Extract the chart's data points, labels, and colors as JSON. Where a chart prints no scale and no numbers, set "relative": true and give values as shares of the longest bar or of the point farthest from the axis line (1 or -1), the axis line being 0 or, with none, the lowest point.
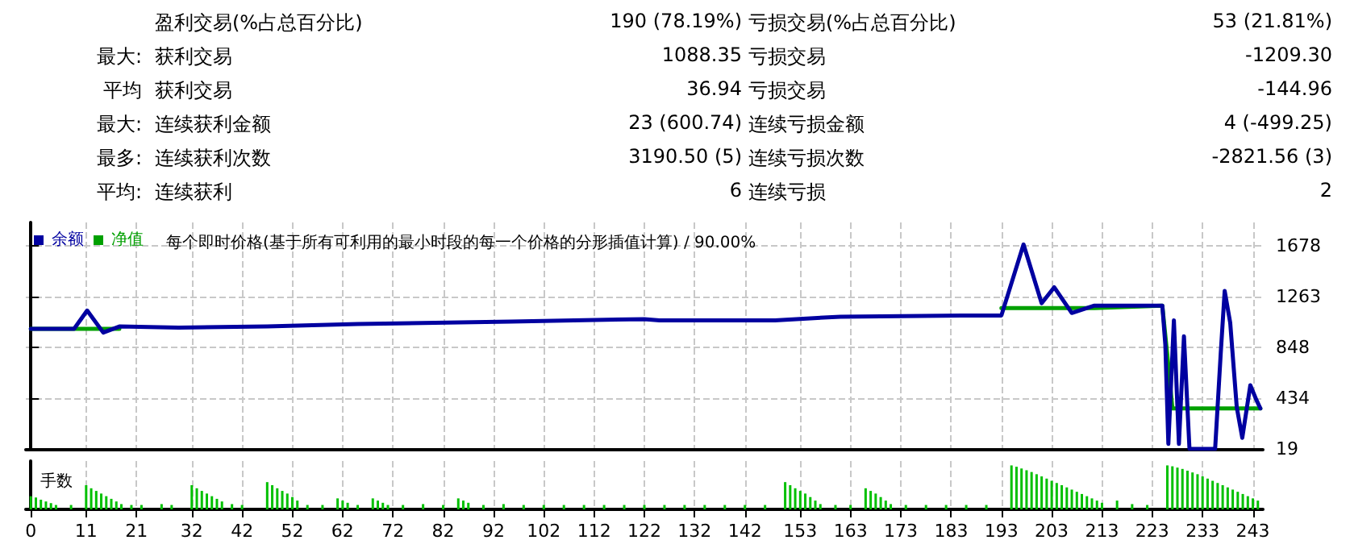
{
  "chart_data": [
    {
      "type": "other",
      "annotations": [
        "盈利交易(%占总百分比)",
        "190 (78.19%)",
        "亏损交易(%占总百分比)",
        "53 (21.81%)",
        "最大:",
        "获利交易",
        "1088.35",
        "亏损交易",
        "-1209.30",
        "平均",
        "获利交易",
        "36.94",
        "亏损交易",
        "-144.96",
        "最大:",
        "连续获利金额",
        "23 (600.74)",
        "连续亏损金额",
        "4 (-499.25)",
        "最多:",
        "连续获利次数",
        "3190.50 (5)",
        "连续亏损次数",
        "-2821.56 (3)",
        "平均:",
        "连续获利",
        "6",
        "连续亏损",
        "2"
      ]
    },
    {
      "type": "line",
      "title": "每个即时价格(基于所有可利用的最小时段的每一个价格的分形插值计算) / 90.00%",
      "xlim": [
        -1,
        245
      ],
      "xticks": [
        0,
        11,
        21,
        32,
        42,
        52,
        62,
        72,
        82,
        92,
        102,
        112,
        122,
        132,
        142,
        153,
        163,
        173,
        183,
        193,
        203,
        213,
        223,
        233,
        243
      ],
      "ylim": [
        19,
        1870
      ],
      "yticks": [
        19,
        434,
        848,
        1263,
        1678
      ],
      "grid": true,
      "legend": "top left",
      "tick_labels": "y",
      "marker": "none",
      "series": [
        {
          "name": "余额",
          "color": "#0000a0",
          "x": [
            0,
            8.6,
            11.2,
            14.4,
            17.6,
            29.4,
            47,
            65,
            95.5,
            122,
            125,
            148,
            161,
            185,
            193,
            197.4,
            201,
            203.5,
            207,
            211.5,
            225,
            225.6,
            226.2,
            227.3,
            228.3,
            229.3,
            230.4,
            235.5,
            236.6,
            237.4,
            238.5,
            239.8,
            240.9,
            242.5,
            243.7,
            244.5
          ],
          "values": [
            1000,
            1000,
            1150,
            970,
            1020,
            1010,
            1020,
            1040,
            1060,
            1080,
            1070,
            1070,
            1100,
            1110,
            1110,
            1690,
            1210,
            1340,
            1130,
            1190,
            1190,
            870,
            60,
            1070,
            60,
            940,
            19,
            19,
            790,
            1310,
            1050,
            360,
            110,
            540,
            420,
            350
          ]
        },
        {
          "name": "净值",
          "color": "#00a000",
          "x": [
            0,
            17.6,
            29.4,
            47,
            65,
            95.5,
            122,
            125,
            148,
            161,
            185,
            193,
            211.5,
            225,
            226.2,
            227,
            244.5
          ],
          "values": [
            1000,
            1000,
            null,
            null,
            null,
            null,
            null,
            null,
            null,
            null,
            null,
            1170,
            1170,
            1190,
            700,
            350,
            350
          ]
        }
      ]
    },
    {
      "type": "bar",
      "title": "手数",
      "relative": true,
      "color": "#00c000",
      "grid": "x",
      "tick_labels": "x",
      "xlim": [
        -1,
        245
      ],
      "xticks": [
        0,
        11,
        21,
        32,
        42,
        52,
        62,
        72,
        82,
        92,
        102,
        112,
        122,
        132,
        142,
        153,
        163,
        173,
        183,
        193,
        203,
        213,
        223,
        233,
        243
      ],
      "x": [
        0,
        1,
        2,
        3,
        4,
        5,
        8,
        11,
        12,
        13,
        14,
        15,
        16,
        17,
        18,
        20,
        22,
        26,
        28,
        32,
        33,
        34,
        35,
        36,
        37,
        38,
        40,
        42,
        47,
        48,
        49,
        50,
        51,
        52,
        53,
        55,
        58,
        61,
        62,
        63,
        65,
        68,
        69,
        70,
        71,
        74,
        78,
        82,
        85,
        86,
        87,
        90,
        94,
        98,
        102,
        106,
        110,
        114,
        118,
        122,
        126,
        130,
        134,
        138,
        142,
        146,
        150,
        151,
        152,
        153,
        154,
        155,
        156,
        157,
        160,
        163,
        166,
        167,
        168,
        169,
        170,
        171,
        174,
        178,
        182,
        186,
        190,
        195,
        196,
        197,
        198,
        199,
        200,
        201,
        202,
        203,
        204,
        205,
        206,
        207,
        208,
        209,
        210,
        211,
        212,
        213,
        216,
        219,
        222,
        226,
        227,
        228,
        229,
        230,
        231,
        232,
        233,
        234,
        235,
        236,
        237,
        238,
        239,
        240,
        241,
        242,
        243,
        244
      ],
      "values": [
        0.3,
        0.27,
        0.22,
        0.18,
        0.14,
        0.1,
        0.1,
        0.55,
        0.48,
        0.42,
        0.36,
        0.3,
        0.24,
        0.18,
        0.12,
        0.1,
        0.1,
        0.12,
        0.1,
        0.55,
        0.48,
        0.42,
        0.36,
        0.3,
        0.24,
        0.18,
        0.12,
        0.1,
        0.62,
        0.55,
        0.48,
        0.42,
        0.36,
        0.28,
        0.2,
        0.1,
        0.1,
        0.25,
        0.2,
        0.15,
        0.1,
        0.25,
        0.2,
        0.15,
        0.1,
        0.1,
        0.12,
        0.1,
        0.25,
        0.2,
        0.15,
        0.1,
        0.12,
        0.1,
        0.1,
        0.1,
        0.1,
        0.1,
        0.1,
        0.1,
        0.1,
        0.1,
        0.1,
        0.1,
        0.1,
        0.1,
        0.62,
        0.55,
        0.48,
        0.42,
        0.36,
        0.28,
        0.2,
        0.12,
        0.1,
        0.1,
        0.48,
        0.42,
        0.36,
        0.28,
        0.2,
        0.12,
        0.1,
        0.1,
        0.1,
        0.1,
        0.1,
        1.0,
        0.97,
        0.93,
        0.89,
        0.85,
        0.8,
        0.75,
        0.7,
        0.65,
        0.6,
        0.55,
        0.5,
        0.45,
        0.4,
        0.35,
        0.3,
        0.25,
        0.2,
        0.15,
        0.2,
        0.12,
        0.1,
        1.0,
        0.98,
        0.95,
        0.92,
        0.88,
        0.84,
        0.8,
        0.75,
        0.7,
        0.65,
        0.6,
        0.55,
        0.5,
        0.45,
        0.4,
        0.35,
        0.3,
        0.25,
        0.2
      ]
    }
  ]
}
